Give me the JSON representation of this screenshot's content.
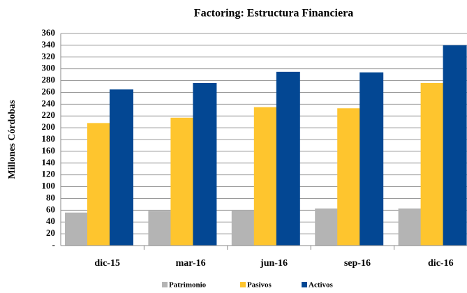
{
  "chart_data": {
    "type": "bar",
    "title": "Factoring: Estructura Financiera",
    "y_label": "Millones Córdobas",
    "categories": [
      "dic-15",
      "mar-16",
      "jun-16",
      "sep-16",
      "dic-16"
    ],
    "series": [
      {
        "name": "Patrimonio",
        "color": "#b4b4b4",
        "values": [
          56,
          59,
          60,
          63,
          63
        ]
      },
      {
        "name": "Pasivos",
        "color": "#fec52e",
        "values": [
          208,
          217,
          235,
          233,
          276
        ]
      },
      {
        "name": "Activos",
        "color": "#034793",
        "values": [
          265,
          276,
          295,
          294,
          340
        ]
      }
    ],
    "ylim": [
      0,
      360
    ],
    "yticks": [
      {
        "value": 0,
        "label": "-"
      },
      20,
      40,
      60,
      80,
      100,
      120,
      140,
      160,
      180,
      200,
      220,
      240,
      260,
      280,
      300,
      320,
      340,
      360
    ],
    "grid": true,
    "legend": "bottom"
  }
}
